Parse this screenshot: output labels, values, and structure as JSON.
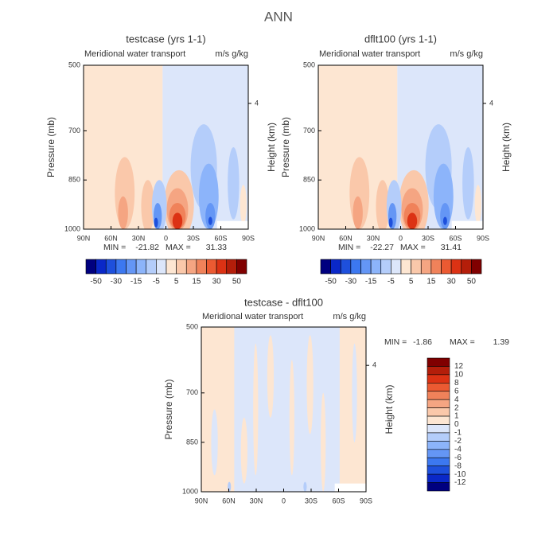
{
  "title": "ANN",
  "chart_data": [
    {
      "type": "contour",
      "title": "testcase (yrs 1-1)",
      "subtitle": "Meridional water transport",
      "subtitle_units": "m/s g/kg",
      "ylabel": "Pressure (mb)",
      "y2label": "Height (km)",
      "xlim": [
        90,
        -90
      ],
      "xticks": [
        {
          "value": 90,
          "label": "90N"
        },
        {
          "value": 60,
          "label": "60N"
        },
        {
          "value": 30,
          "label": "30N"
        },
        0,
        {
          "value": -30,
          "label": "30S"
        },
        {
          "value": -60,
          "label": "60S"
        },
        {
          "value": -90,
          "label": "90S"
        }
      ],
      "ylim": [
        1000,
        500
      ],
      "yticks": [
        500,
        700,
        850,
        1000
      ],
      "y2ticks": [
        4
      ],
      "min_label": "MIN =",
      "min": -21.82,
      "max_label": "MAX =",
      "max": 31.33,
      "colorbar": {
        "labels": [
          -50,
          -30,
          -15,
          -5,
          5,
          15,
          30,
          50
        ],
        "colors": [
          "#00007f",
          "#0a28c8",
          "#1e50dc",
          "#3c78f0",
          "#6496f5",
          "#8cb4fa",
          "#b4cdfa",
          "#dce6fa",
          "#fde6d2",
          "#fac8aa",
          "#f5a582",
          "#f0825a",
          "#eb5a32",
          "#dc3214",
          "#b41e0a",
          "#800000"
        ]
      }
    },
    {
      "type": "contour",
      "title": "dflt100 (yrs 1-1)",
      "subtitle": "Meridional water transport",
      "subtitle_units": "m/s g/kg",
      "ylabel": "Pressure (mb)",
      "y2label": "Height (km)",
      "xlim": [
        90,
        -90
      ],
      "xticks": [
        {
          "value": 90,
          "label": "90N"
        },
        {
          "value": 60,
          "label": "60N"
        },
        {
          "value": 30,
          "label": "30N"
        },
        0,
        {
          "value": -30,
          "label": "30S"
        },
        {
          "value": -60,
          "label": "60S"
        },
        {
          "value": -90,
          "label": "90S"
        }
      ],
      "ylim": [
        1000,
        500
      ],
      "yticks": [
        500,
        700,
        850,
        1000
      ],
      "y2ticks": [
        4
      ],
      "min_label": "MIN =",
      "min": -22.27,
      "max_label": "MAX =",
      "max": 31.41,
      "colorbar": {
        "labels": [
          -50,
          -30,
          -15,
          -5,
          5,
          15,
          30,
          50
        ],
        "colors": [
          "#00007f",
          "#0a28c8",
          "#1e50dc",
          "#3c78f0",
          "#6496f5",
          "#8cb4fa",
          "#b4cdfa",
          "#dce6fa",
          "#fde6d2",
          "#fac8aa",
          "#f5a582",
          "#f0825a",
          "#eb5a32",
          "#dc3214",
          "#b41e0a",
          "#800000"
        ]
      }
    },
    {
      "type": "contour",
      "title": "testcase - dflt100",
      "subtitle": "Meridional water transport",
      "subtitle_units": "m/s g/kg",
      "ylabel": "Pressure (mb)",
      "y2label": "Height (km)",
      "xlim": [
        90,
        -90
      ],
      "xticks": [
        {
          "value": 90,
          "label": "90N"
        },
        {
          "value": 60,
          "label": "60N"
        },
        {
          "value": 30,
          "label": "30N"
        },
        0,
        {
          "value": -30,
          "label": "30S"
        },
        {
          "value": -60,
          "label": "60S"
        },
        {
          "value": -90,
          "label": "90S"
        }
      ],
      "ylim": [
        1000,
        500
      ],
      "yticks": [
        500,
        700,
        850,
        1000
      ],
      "y2ticks": [
        4
      ],
      "min_label": "MIN =",
      "min": -1.86,
      "max_label": "MAX =",
      "max": 1.39,
      "colorbar": {
        "labels": [
          12,
          10,
          8,
          6,
          4,
          2,
          1,
          0,
          -1,
          -2,
          -4,
          -6,
          -8,
          -10,
          -12
        ],
        "colors": [
          "#800000",
          "#b41e0a",
          "#dc3214",
          "#eb5a32",
          "#f0825a",
          "#f5a582",
          "#fac8aa",
          "#fde6d2",
          "#dce6fa",
          "#b4cdfa",
          "#8cb4fa",
          "#6496f5",
          "#3c78f0",
          "#1e50dc",
          "#0a28c8",
          "#00007f"
        ]
      }
    }
  ]
}
